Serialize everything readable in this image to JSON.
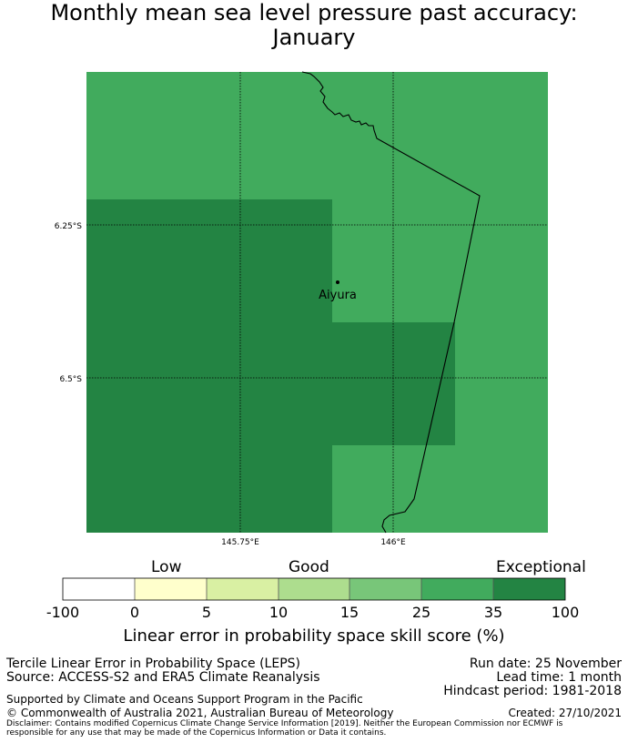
{
  "title": {
    "line1": "Monthly mean sea level pressure past accuracy:",
    "line2": "January"
  },
  "map": {
    "lat_labels": [
      "6.25°S",
      "6.5°S"
    ],
    "lon_labels": [
      "145.75°E",
      "146°E"
    ],
    "place": {
      "name": "Aiyura"
    },
    "colors": {
      "good_25_35": "#41ab5d",
      "exceptional_35_100": "#238443",
      "coastline": "#000000"
    }
  },
  "colorbar": {
    "category_labels": [
      "Low",
      "Good",
      "Exceptional"
    ],
    "ticks": [
      "-100",
      "0",
      "5",
      "10",
      "15",
      "25",
      "35",
      "100"
    ],
    "colors": [
      "#ffffff",
      "#ffffcc",
      "#d9f0a3",
      "#addd8e",
      "#78c679",
      "#41ab5d",
      "#238443"
    ],
    "caption": "Linear error in probability space skill score (%)"
  },
  "footer": {
    "method": "Tercile Linear Error in Probability Space (LEPS)",
    "source": "Source: ACCESS-S2 and ERA5 Climate Reanalysis",
    "run_date": "Run date: 25 November",
    "lead_time": "Lead time: 1 month",
    "hindcast": "Hindcast period: 1981-2018",
    "support": "Supported by Climate and Oceans Support Program in the Pacific",
    "copyright": "© Commonwealth of Australia 2021, Australian Bureau of Meteorology",
    "created": "Created: 27/10/2021",
    "disclaimer": "Disclaimer: Contains modified Copernicus Climate Change Service Information [2019]. Neither the European Commission nor ECMWF is responsible for any use that may be made of the Copernicus Information or Data it contains."
  }
}
